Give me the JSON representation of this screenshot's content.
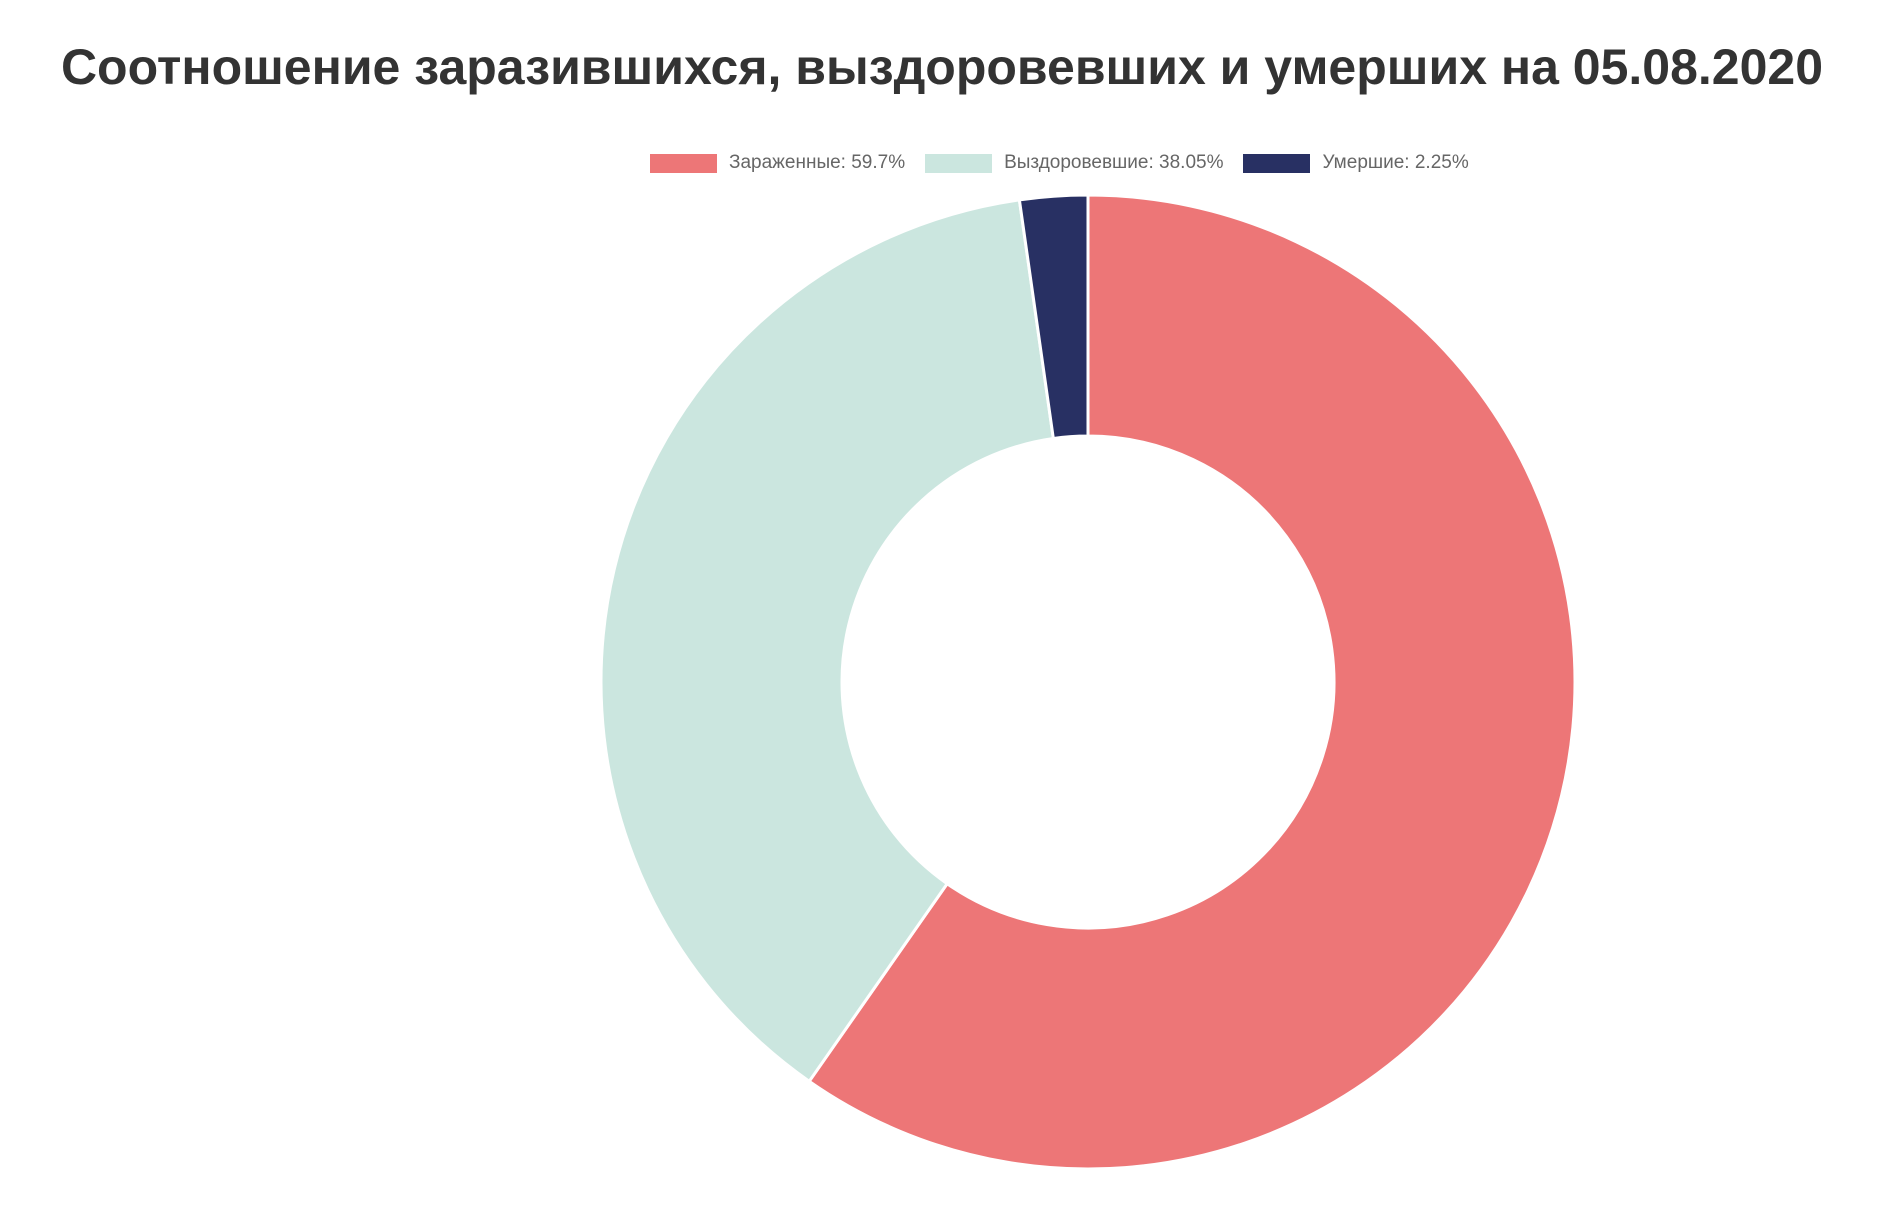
{
  "chart_data": {
    "type": "pie",
    "title": "Соотношение заразившихся, выздоровевших и умерших на 05.08.2020",
    "legend_position": "top",
    "slices": [
      {
        "label": "Зараженные: 59.7%",
        "value": 59.7,
        "color": "#ed7677"
      },
      {
        "label": "Выздоровевшие: 38.05%",
        "value": 38.05,
        "color": "#cbe6df"
      },
      {
        "label": "Умершие: 2.25%",
        "value": 2.25,
        "color": "#283063"
      }
    ]
  }
}
